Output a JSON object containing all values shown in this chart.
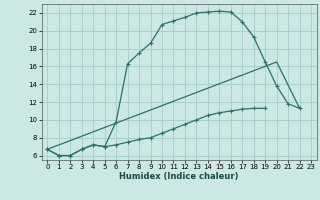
{
  "xlabel": "Humidex (Indice chaleur)",
  "bg_color": "#cce8e4",
  "grid_color": "#aacfca",
  "line_color": "#2d7068",
  "xlim": [
    -0.5,
    23.5
  ],
  "ylim": [
    5.5,
    23.0
  ],
  "xticks": [
    0,
    1,
    2,
    3,
    4,
    5,
    6,
    7,
    8,
    9,
    10,
    11,
    12,
    13,
    14,
    15,
    16,
    17,
    18,
    19,
    20,
    21,
    22,
    23
  ],
  "yticks": [
    6,
    8,
    10,
    12,
    14,
    16,
    18,
    20,
    22
  ],
  "line1_x": [
    0,
    1,
    2,
    3,
    4,
    5,
    6,
    7,
    8,
    9,
    10,
    11,
    12,
    13,
    14,
    15,
    16,
    17,
    18,
    19,
    20,
    21,
    22
  ],
  "line1_y": [
    6.7,
    6.0,
    6.0,
    6.7,
    7.2,
    7.0,
    9.8,
    16.3,
    17.5,
    18.6,
    20.7,
    21.1,
    21.5,
    22.0,
    22.1,
    22.2,
    22.1,
    21.0,
    19.3,
    16.5,
    13.8,
    11.8,
    11.3
  ],
  "line2_x": [
    0,
    1,
    2,
    3,
    4,
    5,
    6,
    7,
    8,
    9,
    10,
    11,
    12,
    13,
    14,
    15,
    16,
    17,
    18,
    19
  ],
  "line2_y": [
    6.7,
    6.0,
    6.0,
    6.7,
    7.2,
    7.0,
    7.2,
    7.5,
    7.8,
    8.0,
    8.5,
    9.0,
    9.5,
    10.0,
    10.5,
    10.8,
    11.0,
    11.2,
    11.3,
    11.3
  ],
  "line3_x": [
    0,
    20,
    22
  ],
  "line3_y": [
    6.7,
    16.5,
    11.3
  ]
}
